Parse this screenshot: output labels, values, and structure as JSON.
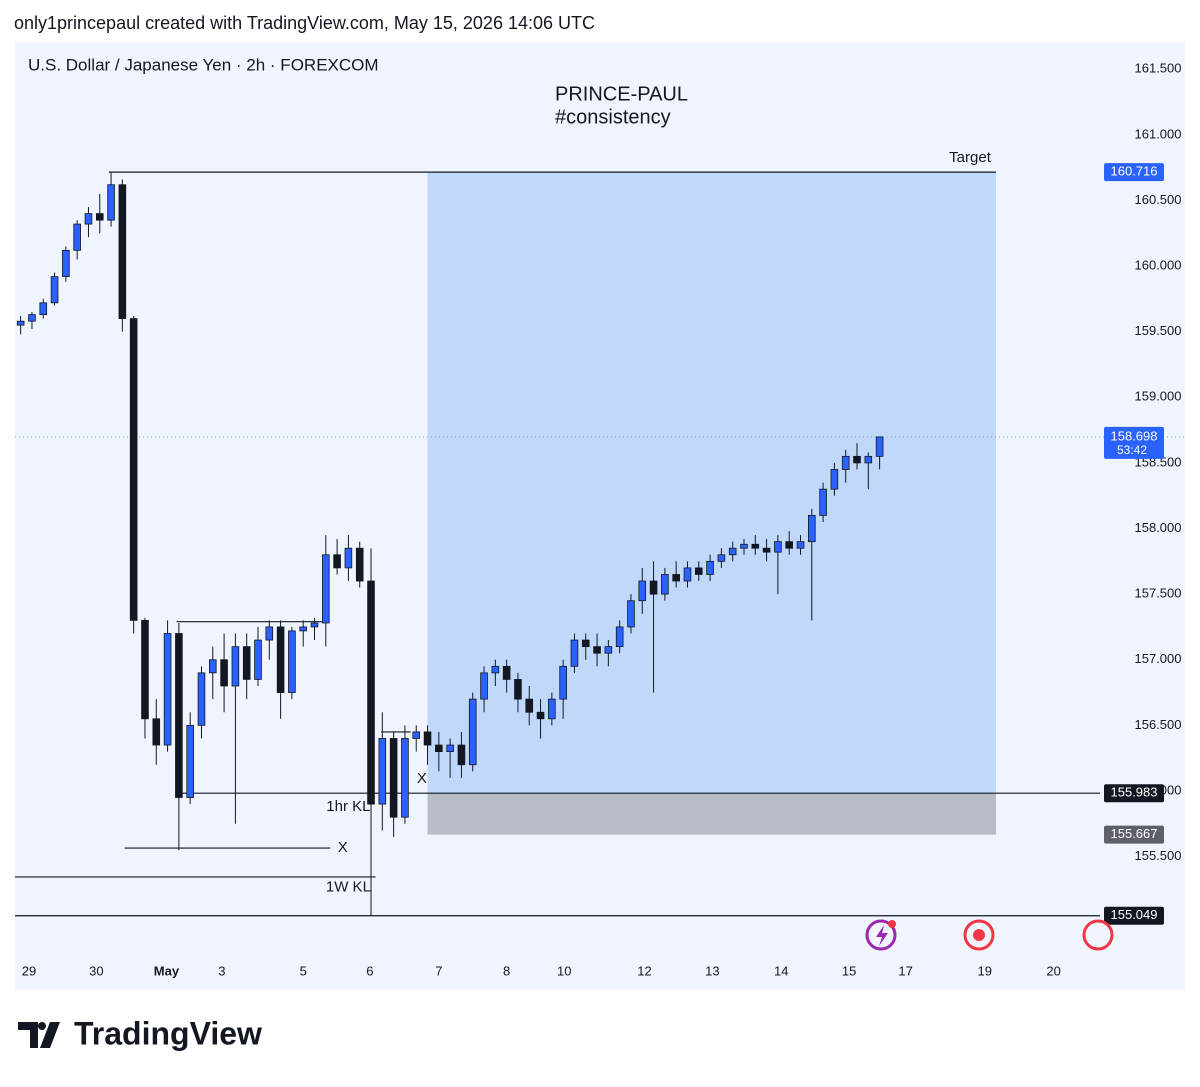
{
  "header": "only1princepaul created with TradingView.com, May 15, 2026 14:06 UTC",
  "footer": "TradingView",
  "chart_data": {
    "type": "candlestick",
    "title": "U.S. Dollar / Japanese Yen · 2h · FOREXCOM",
    "watermark": [
      "PRINCE-PAUL",
      "#consistency"
    ],
    "up_color": "#2962ff",
    "down_color": "#131722",
    "xlim": [
      0,
      96
    ],
    "xticks": [
      {
        "value": 1.24,
        "label": "29"
      },
      {
        "value": 7.2,
        "label": "30"
      },
      {
        "value": 13.4,
        "label": "May"
      },
      {
        "value": 18.3,
        "label": "3"
      },
      {
        "value": 25.5,
        "label": "5"
      },
      {
        "value": 31.4,
        "label": "6"
      },
      {
        "value": 37.5,
        "label": "7"
      },
      {
        "value": 43.5,
        "label": "8"
      },
      {
        "value": 48.6,
        "label": "10"
      },
      {
        "value": 55.7,
        "label": "12"
      },
      {
        "value": 61.7,
        "label": "13"
      },
      {
        "value": 67.8,
        "label": "14"
      },
      {
        "value": 73.8,
        "label": "15"
      },
      {
        "value": 78.8,
        "label": "17"
      },
      {
        "value": 85.8,
        "label": "19"
      },
      {
        "value": 91.9,
        "label": "20"
      }
    ],
    "ylim": [
      154.75,
      161.7
    ],
    "yticks": [
      {
        "value": 155.5,
        "label": "155.500"
      },
      {
        "value": 156,
        "label": "156.000"
      },
      {
        "value": 156.5,
        "label": "156.500"
      },
      {
        "value": 157,
        "label": "157.000"
      },
      {
        "value": 157.5,
        "label": "157.500"
      },
      {
        "value": 158,
        "label": "158.000"
      },
      {
        "value": 158.5,
        "label": "158.500"
      },
      {
        "value": 159,
        "label": "159.000"
      },
      {
        "value": 159.5,
        "label": "159.500"
      },
      {
        "value": 160,
        "label": "160.000"
      },
      {
        "value": 160.5,
        "label": "160.500"
      },
      {
        "value": 161,
        "label": "161.000"
      },
      {
        "value": 161.5,
        "label": "161.500"
      }
    ],
    "ohlc": [
      [
        159.55,
        159.62,
        159.48,
        159.58
      ],
      [
        159.58,
        159.65,
        159.52,
        159.63
      ],
      [
        159.63,
        159.75,
        159.6,
        159.72
      ],
      [
        159.72,
        159.95,
        159.7,
        159.92
      ],
      [
        159.92,
        160.15,
        159.88,
        160.12
      ],
      [
        160.12,
        160.35,
        160.05,
        160.32
      ],
      [
        160.32,
        160.45,
        160.22,
        160.4
      ],
      [
        160.4,
        160.55,
        160.25,
        160.35
      ],
      [
        160.35,
        160.716,
        160.3,
        160.62
      ],
      [
        160.62,
        160.66,
        159.5,
        159.6
      ],
      [
        159.6,
        159.62,
        157.2,
        157.3
      ],
      [
        157.3,
        157.32,
        156.4,
        156.55
      ],
      [
        156.55,
        156.7,
        156.2,
        156.35
      ],
      [
        156.35,
        157.3,
        156.3,
        157.2
      ],
      [
        157.2,
        157.28,
        155.55,
        155.95
      ],
      [
        155.95,
        156.6,
        155.9,
        156.5
      ],
      [
        156.5,
        156.95,
        156.4,
        156.9
      ],
      [
        156.9,
        157.1,
        156.7,
        157
      ],
      [
        157,
        157.2,
        156.6,
        156.8
      ],
      [
        156.8,
        157.2,
        155.75,
        157.1
      ],
      [
        157.1,
        157.2,
        156.7,
        156.85
      ],
      [
        156.85,
        157.25,
        156.8,
        157.15
      ],
      [
        157.15,
        157.3,
        157,
        157.25
      ],
      [
        157.25,
        157.3,
        156.55,
        156.75
      ],
      [
        156.75,
        157.25,
        156.7,
        157.22
      ],
      [
        157.22,
        157.3,
        157.1,
        157.25
      ],
      [
        157.25,
        157.32,
        157.15,
        157.28
      ],
      [
        157.28,
        157.95,
        157.1,
        157.8
      ],
      [
        157.8,
        157.92,
        157.65,
        157.7
      ],
      [
        157.7,
        157.95,
        157.6,
        157.85
      ],
      [
        157.85,
        157.9,
        157.55,
        157.6
      ],
      [
        157.6,
        157.85,
        155.049,
        155.9
      ],
      [
        155.9,
        156.6,
        155.7,
        156.4
      ],
      [
        156.4,
        156.45,
        155.65,
        155.8
      ],
      [
        155.8,
        156.5,
        155.75,
        156.4
      ],
      [
        156.4,
        156.5,
        156.3,
        156.45
      ],
      [
        156.45,
        156.5,
        156.2,
        156.35
      ],
      [
        156.35,
        156.45,
        156.15,
        156.3
      ],
      [
        156.3,
        156.4,
        156.1,
        156.35
      ],
      [
        156.35,
        156.45,
        156.1,
        156.2
      ],
      [
        156.2,
        156.75,
        156.15,
        156.7
      ],
      [
        156.7,
        156.95,
        156.6,
        156.9
      ],
      [
        156.9,
        157,
        156.8,
        156.95
      ],
      [
        156.95,
        157,
        156.75,
        156.85
      ],
      [
        156.85,
        156.9,
        156.6,
        156.7
      ],
      [
        156.7,
        156.8,
        156.5,
        156.6
      ],
      [
        156.6,
        156.7,
        156.4,
        156.55
      ],
      [
        156.55,
        156.75,
        156.5,
        156.7
      ],
      [
        156.7,
        157,
        156.55,
        156.95
      ],
      [
        156.95,
        157.2,
        156.9,
        157.15
      ],
      [
        157.15,
        157.2,
        157,
        157.1
      ],
      [
        157.1,
        157.2,
        156.95,
        157.05
      ],
      [
        157.05,
        157.15,
        156.95,
        157.1
      ],
      [
        157.1,
        157.3,
        157.05,
        157.25
      ],
      [
        157.25,
        157.5,
        157.2,
        157.45
      ],
      [
        157.45,
        157.7,
        157.35,
        157.6
      ],
      [
        157.6,
        157.75,
        156.75,
        157.5
      ],
      [
        157.5,
        157.7,
        157.45,
        157.65
      ],
      [
        157.65,
        157.75,
        157.55,
        157.6
      ],
      [
        157.6,
        157.75,
        157.55,
        157.7
      ],
      [
        157.7,
        157.75,
        157.6,
        157.65
      ],
      [
        157.65,
        157.8,
        157.6,
        157.75
      ],
      [
        157.75,
        157.85,
        157.7,
        157.8
      ],
      [
        157.8,
        157.9,
        157.75,
        157.85
      ],
      [
        157.85,
        157.92,
        157.8,
        157.88
      ],
      [
        157.88,
        157.95,
        157.8,
        157.85
      ],
      [
        157.85,
        157.92,
        157.75,
        157.82
      ],
      [
        157.82,
        157.95,
        157.5,
        157.9
      ],
      [
        157.9,
        157.98,
        157.8,
        157.85
      ],
      [
        157.85,
        157.95,
        157.8,
        157.9
      ],
      [
        157.9,
        158.15,
        157.3,
        158.1
      ],
      [
        158.1,
        158.35,
        158.05,
        158.3
      ],
      [
        158.3,
        158.5,
        158.25,
        158.45
      ],
      [
        158.45,
        158.6,
        158.35,
        158.55
      ],
      [
        158.55,
        158.65,
        158.45,
        158.5
      ],
      [
        158.5,
        158.58,
        158.3,
        158.55
      ],
      [
        158.55,
        158.7,
        158.45,
        158.698
      ]
    ],
    "position": {
      "target": 160.716,
      "entry": 155.983,
      "stop": 155.667,
      "x": [
        36.5,
        86.8
      ]
    },
    "segments": [
      {
        "y": 160.716,
        "x": [
          8.3,
          86.8
        ]
      },
      {
        "y": 157.29,
        "x": [
          14.3,
          27.2
        ]
      },
      {
        "y": 155.983,
        "x": [
          14.3,
          96
        ]
      },
      {
        "y": 155.565,
        "x": [
          9.7,
          27.9
        ]
      },
      {
        "y": 155.345,
        "x": [
          0,
          31.9
        ]
      },
      {
        "y": 155.049,
        "x": [
          0,
          96
        ]
      },
      {
        "y": 156.45,
        "x": [
          32.4,
          35
        ]
      }
    ],
    "annotations": [
      {
        "text": "Target",
        "y": 160.716,
        "x": 84.5
      },
      {
        "text": "1hr KL",
        "y": 155.983,
        "x": 29.5
      },
      {
        "text": "X",
        "y": 155.983,
        "x": 36
      },
      {
        "text": "X",
        "y": 155.565,
        "x": 29
      },
      {
        "text": "1W KL",
        "y": 155.049,
        "x": 29.5
      }
    ],
    "price_tags": [
      {
        "value": 160.716,
        "color": "#2962ff"
      },
      {
        "value": 155.983,
        "color": "#131722"
      },
      {
        "value": 155.667,
        "color": "#5d606b"
      },
      {
        "value": 155.049,
        "color": "#131722"
      }
    ],
    "last_price": 158.698,
    "countdown": "53:42"
  }
}
